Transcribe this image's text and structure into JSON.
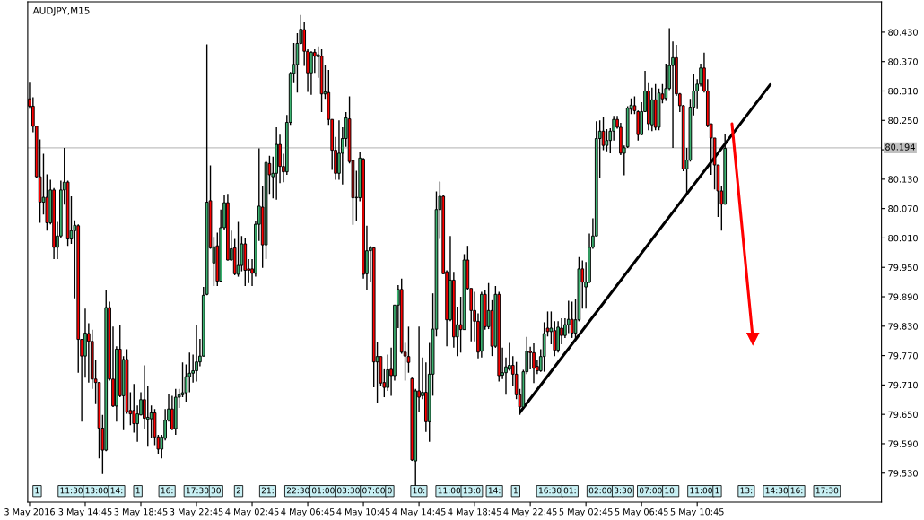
{
  "chart_data": {
    "type": "candlestick",
    "title": "AUDJPY,M15",
    "colors": [
      "#ff0000",
      "#ff0000",
      "#ff0000",
      "#ff0000",
      "#3cb371",
      "#ff0000",
      "#3cb371",
      "#ff0000",
      "#3cb371",
      "#3cb371",
      "#3cb371",
      "#ff0000",
      "#3cb371",
      "#3cb371",
      "#ff0000",
      "#ff0000",
      "#3cb371",
      "#ff0000",
      "#ff0000",
      "#ff0000",
      "#ff0000",
      "#ff0000",
      "#3cb371",
      "#ff0000",
      "#ff0000",
      "#3cb371",
      "#ff0000",
      "#3cb371",
      "#ff0000",
      "#ff0000",
      "#ff0000",
      "#3cb371",
      "#3cb371",
      "#ff0000",
      "#3cb371",
      "#3cb371",
      "#ff0000",
      "#ff0000",
      "#3cb371",
      "#3cb371",
      "#3cb371",
      "#ff0000",
      "#3cb371",
      "#3cb371",
      "#3cb371",
      "#3cb371",
      "#3cb371",
      "#3cb371",
      "#3cb371",
      "#3cb371",
      "#3cb371",
      "#3cb371",
      "#ff0000",
      "#3cb371",
      "#ff0000",
      "#3cb371",
      "#3cb371",
      "#ff0000",
      "#3cb371",
      "#ff0000",
      "#3cb371",
      "#3cb371",
      "#ff0000",
      "#ff0000",
      "#ff0000",
      "#3cb371",
      "#3cb371",
      "#ff0000",
      "#3cb371",
      "#ff0000",
      "#3cb371",
      "#3cb371",
      "#ff0000",
      "#ff0000",
      "#3cb371",
      "#3cb371",
      "#3cb371",
      "#3cb371",
      "#3cb371",
      "#ff0000",
      "#ff0000",
      "#3cb371",
      "#ff0000",
      "#3cb371",
      "#ff0000",
      "#3cb371",
      "#ff0000",
      "#ff0000",
      "#ff0000",
      "#3cb371",
      "#3cb371",
      "#3cb371",
      "#ff0000",
      "#ff0000",
      "#3cb371",
      "#3cb371",
      "#ff0000",
      "#3cb371",
      "#3cb371",
      "#ff0000",
      "#3cb371",
      "#ff0000",
      "#ff0000",
      "#3cb371",
      "#ff0000",
      "#3cb371",
      "#3cb371",
      "#ff0000",
      "#ff0000",
      "#ff0000",
      "#ff0000",
      "#3cb371",
      "#ff0000",
      "#3cb371",
      "#ff0000",
      "#3cb371",
      "#3cb371",
      "#3cb371",
      "#3cb371",
      "#ff0000",
      "#ff0000",
      "#3cb371",
      "#ff0000",
      "#3cb371",
      "#ff0000",
      "#3cb371",
      "#ff0000",
      "#ff0000",
      "#ff0000",
      "#ff0000",
      "#3cb371",
      "#ff0000",
      "#3cb371",
      "#ff0000",
      "#3cb371",
      "#ff0000",
      "#3cb371",
      "#3cb371",
      "#3cb371",
      "#ff0000",
      "#ff0000",
      "#ff0000",
      "#3cb371",
      "#3cb371",
      "#ff0000",
      "#ff0000",
      "#ff0000",
      "#3cb371",
      "#3cb371",
      "#ff0000",
      "#3cb371",
      "#ff0000",
      "#3cb371",
      "#ff0000",
      "#3cb371",
      "#3cb371",
      "#ff0000",
      "#3cb371",
      "#3cb371",
      "#ff0000",
      "#3cb371",
      "#3cb371",
      "#3cb371",
      "#3cb371",
      "#3cb371",
      "#ff0000",
      "#3cb371",
      "#3cb371",
      "#3cb371",
      "#ff0000",
      "#ff0000",
      "#3cb371",
      "#3cb371",
      "#3cb371",
      "#ff0000",
      "#ff0000",
      "#3cb371",
      "#3cb371",
      "#ff0000",
      "#3cb371",
      "#ff0000",
      "#3cb371",
      "#ff0000",
      "#3cb371",
      "#3cb371",
      "#3cb371",
      "#ff0000",
      "#ff0000",
      "#ff0000",
      "#3cb371",
      "#3cb371",
      "#3cb371",
      "#3cb371",
      "#3cb371",
      "#ff0000",
      "#ff0000",
      "#ff0000",
      "#ff0000",
      "#ff0000",
      "#ff0000",
      "#3cb371"
    ],
    "x": [
      "2016-05-03T10:45",
      "2016-05-03T11:00",
      "2016-05-03T11:15",
      "2016-05-03T11:30",
      "2016-05-03T11:45",
      "2016-05-03T12:00",
      "2016-05-03T12:15",
      "2016-05-03T12:30",
      "2016-05-03T12:45",
      "2016-05-03T13:00",
      "2016-05-03T13:15",
      "2016-05-03T13:30",
      "2016-05-03T13:45",
      "2016-05-03T14:00",
      "2016-05-03T14:15",
      "2016-05-03T14:30",
      "2016-05-03T14:45",
      "2016-05-03T15:00",
      "2016-05-03T15:15",
      "2016-05-03T15:30",
      "2016-05-03T15:45",
      "2016-05-03T16:00",
      "2016-05-03T16:15",
      "2016-05-03T16:30",
      "2016-05-03T16:45",
      "2016-05-03T17:00",
      "2016-05-03T17:15",
      "2016-05-03T17:30",
      "2016-05-03T17:45",
      "2016-05-03T18:00",
      "2016-05-03T18:15",
      "2016-05-03T18:30",
      "2016-05-03T18:45",
      "2016-05-03T19:00",
      "2016-05-03T19:15",
      "2016-05-03T19:30",
      "2016-05-03T19:45",
      "2016-05-03T20:00",
      "2016-05-03T20:15",
      "2016-05-03T20:30",
      "2016-05-03T20:45",
      "2016-05-03T21:00",
      "2016-05-03T21:15",
      "2016-05-03T21:30",
      "2016-05-03T21:45",
      "2016-05-03T22:00",
      "2016-05-03T22:15",
      "2016-05-03T22:30",
      "2016-05-03T22:45",
      "2016-05-03T23:00",
      "2016-05-03T23:15",
      "2016-05-03T23:30",
      "2016-05-03T23:45",
      "2016-05-04T00:00",
      "2016-05-04T00:15",
      "2016-05-04T00:30",
      "2016-05-04T00:45",
      "2016-05-04T01:00",
      "2016-05-04T01:15",
      "2016-05-04T01:30",
      "2016-05-04T01:45",
      "2016-05-04T02:00",
      "2016-05-04T02:15",
      "2016-05-04T02:30",
      "2016-05-04T02:45",
      "2016-05-04T03:00",
      "2016-05-04T03:15",
      "2016-05-04T03:30",
      "2016-05-04T03:45",
      "2016-05-04T04:00",
      "2016-05-04T04:15",
      "2016-05-04T04:30",
      "2016-05-04T04:45",
      "2016-05-04T05:00",
      "2016-05-04T05:15",
      "2016-05-04T05:30",
      "2016-05-04T05:45",
      "2016-05-04T06:00",
      "2016-05-04T06:15",
      "2016-05-04T06:30",
      "2016-05-04T06:45",
      "2016-05-04T07:00",
      "2016-05-04T07:15",
      "2016-05-04T07:30",
      "2016-05-04T07:45",
      "2016-05-04T08:00",
      "2016-05-04T08:15",
      "2016-05-04T08:30",
      "2016-05-04T08:45",
      "2016-05-04T09:00",
      "2016-05-04T09:15",
      "2016-05-04T09:30",
      "2016-05-04T09:45",
      "2016-05-04T10:00",
      "2016-05-04T10:15",
      "2016-05-04T10:30",
      "2016-05-04T10:45",
      "2016-05-04T11:00",
      "2016-05-04T11:15",
      "2016-05-04T11:30",
      "2016-05-04T11:45",
      "2016-05-04T12:00",
      "2016-05-04T12:15",
      "2016-05-04T12:30",
      "2016-05-04T12:45",
      "2016-05-04T13:00",
      "2016-05-04T13:15",
      "2016-05-04T13:30",
      "2016-05-04T13:45",
      "2016-05-04T14:00",
      "2016-05-04T14:15",
      "2016-05-04T14:30",
      "2016-05-04T14:45",
      "2016-05-04T15:00",
      "2016-05-04T15:15",
      "2016-05-04T15:30",
      "2016-05-04T15:45",
      "2016-05-04T16:00",
      "2016-05-04T16:15",
      "2016-05-04T16:30",
      "2016-05-04T16:45",
      "2016-05-04T17:00",
      "2016-05-04T17:15",
      "2016-05-04T17:30",
      "2016-05-04T17:45",
      "2016-05-04T18:00",
      "2016-05-04T18:15",
      "2016-05-04T18:30",
      "2016-05-04T18:45",
      "2016-05-04T19:00",
      "2016-05-04T19:15",
      "2016-05-04T19:30",
      "2016-05-04T19:45",
      "2016-05-04T20:00",
      "2016-05-04T20:15",
      "2016-05-04T20:30",
      "2016-05-04T20:45",
      "2016-05-04T21:00",
      "2016-05-04T21:15",
      "2016-05-04T21:30",
      "2016-05-04T21:45",
      "2016-05-04T22:00",
      "2016-05-04T22:15",
      "2016-05-04T22:30",
      "2016-05-04T22:45",
      "2016-05-04T23:00",
      "2016-05-04T23:15",
      "2016-05-04T23:30",
      "2016-05-04T23:45",
      "2016-05-05T00:00",
      "2016-05-05T00:15",
      "2016-05-05T00:30",
      "2016-05-05T00:45",
      "2016-05-05T01:00",
      "2016-05-05T01:15",
      "2016-05-05T01:30",
      "2016-05-05T01:45",
      "2016-05-05T02:00",
      "2016-05-05T02:15",
      "2016-05-05T02:30",
      "2016-05-05T02:45",
      "2016-05-05T03:00",
      "2016-05-05T03:15",
      "2016-05-05T03:30",
      "2016-05-05T03:45",
      "2016-05-05T04:00",
      "2016-05-05T04:15",
      "2016-05-05T04:30",
      "2016-05-05T04:45",
      "2016-05-05T05:00",
      "2016-05-05T05:15",
      "2016-05-05T05:30",
      "2016-05-05T05:45",
      "2016-05-05T06:00",
      "2016-05-05T06:15",
      "2016-05-05T06:30",
      "2016-05-05T06:45",
      "2016-05-05T07:00",
      "2016-05-05T07:15",
      "2016-05-05T07:30",
      "2016-05-05T07:45",
      "2016-05-05T08:00",
      "2016-05-05T08:15",
      "2016-05-05T08:30",
      "2016-05-05T08:45",
      "2016-05-05T09:00",
      "2016-05-05T09:15",
      "2016-05-05T09:30",
      "2016-05-05T09:45",
      "2016-05-05T10:00",
      "2016-05-05T10:15",
      "2016-05-05T10:30",
      "2016-05-05T10:45",
      "2016-05-05T11:00",
      "2016-05-05T11:15",
      "2016-05-05T11:30",
      "2016-05-05T11:45",
      "2016-05-05T12:00",
      "2016-05-05T12:15",
      "2016-05-05T12:30",
      "2016-05-05T12:45"
    ],
    "ohlc": [
      [
        80.294,
        80.327,
        80.274,
        80.279
      ],
      [
        80.279,
        80.297,
        80.226,
        80.238
      ],
      [
        80.238,
        80.238,
        80.132,
        80.135
      ],
      [
        80.135,
        80.211,
        80.041,
        80.083
      ],
      [
        80.083,
        80.182,
        80.058,
        80.093
      ],
      [
        80.093,
        80.14,
        80.025,
        80.041
      ],
      [
        80.041,
        80.129,
        80.038,
        80.108
      ],
      [
        80.108,
        80.112,
        79.967,
        79.991
      ],
      [
        79.991,
        80.043,
        79.967,
        80.014
      ],
      [
        80.014,
        80.127,
        80.011,
        80.108
      ],
      [
        80.108,
        80.194,
        80.078,
        80.124
      ],
      [
        80.124,
        80.127,
        79.994,
        80.008
      ],
      [
        80.008,
        80.095,
        79.998,
        80.025
      ],
      [
        80.025,
        80.046,
        79.887,
        80.036
      ],
      [
        80.035,
        80.038,
        79.735,
        79.803
      ],
      [
        79.803,
        79.803,
        79.635,
        79.769
      ],
      [
        79.769,
        79.866,
        79.725,
        79.816
      ],
      [
        79.815,
        79.836,
        79.715,
        79.799
      ],
      [
        79.799,
        79.823,
        79.702,
        79.722
      ],
      [
        79.722,
        79.762,
        79.671,
        79.715
      ],
      [
        79.715,
        79.715,
        79.56,
        79.622
      ],
      [
        79.622,
        79.649,
        79.528,
        79.577
      ],
      [
        79.577,
        79.903,
        79.575,
        79.868
      ],
      [
        79.868,
        79.88,
        79.719,
        79.722
      ],
      [
        79.722,
        79.829,
        79.665,
        79.667
      ],
      [
        79.667,
        79.789,
        79.635,
        79.783
      ],
      [
        79.783,
        79.833,
        79.685,
        79.688
      ],
      [
        79.688,
        79.769,
        79.618,
        79.762
      ],
      [
        79.762,
        79.783,
        79.651,
        79.655
      ],
      [
        79.658,
        79.695,
        79.628,
        79.651
      ],
      [
        79.658,
        79.712,
        79.613,
        79.631
      ],
      [
        79.631,
        79.668,
        79.594,
        79.651
      ],
      [
        79.649,
        79.695,
        79.648,
        79.68
      ],
      [
        79.68,
        79.75,
        79.621,
        79.642
      ],
      [
        79.64,
        79.708,
        79.584,
        79.644
      ],
      [
        79.641,
        79.668,
        79.601,
        79.653
      ],
      [
        79.653,
        79.661,
        79.587,
        79.604
      ],
      [
        79.604,
        79.608,
        79.57,
        79.579
      ],
      [
        79.579,
        79.608,
        79.56,
        79.604
      ],
      [
        79.601,
        79.661,
        79.597,
        79.638
      ],
      [
        79.638,
        79.691,
        79.635,
        79.661
      ],
      [
        79.661,
        79.688,
        79.618,
        79.62
      ],
      [
        79.621,
        79.702,
        79.608,
        79.685
      ],
      [
        79.685,
        79.702,
        79.663,
        79.69
      ],
      [
        79.69,
        79.756,
        79.685,
        79.694
      ],
      [
        79.694,
        79.752,
        79.676,
        79.727
      ],
      [
        79.727,
        79.776,
        79.695,
        79.734
      ],
      [
        79.734,
        79.772,
        79.715,
        79.739
      ],
      [
        79.739,
        79.833,
        79.717,
        79.757
      ],
      [
        79.757,
        79.804,
        79.748,
        79.769
      ],
      [
        79.769,
        79.91,
        79.768,
        79.893
      ],
      [
        79.895,
        80.405,
        79.893,
        80.083
      ],
      [
        80.086,
        80.158,
        79.988,
        79.99
      ],
      [
        79.959,
        80.012,
        79.912,
        79.992
      ],
      [
        79.994,
        80.021,
        79.912,
        79.922
      ],
      [
        79.922,
        80.068,
        79.92,
        80.031
      ],
      [
        80.031,
        80.098,
        80.026,
        80.082
      ],
      [
        80.082,
        80.1,
        79.964,
        79.965
      ],
      [
        79.965,
        80.025,
        79.964,
        79.988
      ],
      [
        79.99,
        80.008,
        79.934,
        79.937
      ],
      [
        79.936,
        80.043,
        79.931,
        79.954
      ],
      [
        79.954,
        80.014,
        79.942,
        79.998
      ],
      [
        79.998,
        80.011,
        79.912,
        79.944
      ],
      [
        79.947,
        79.967,
        79.918,
        79.944
      ],
      [
        79.947,
        79.967,
        79.912,
        79.938
      ],
      [
        79.938,
        80.045,
        79.931,
        80.038
      ],
      [
        80.038,
        80.193,
        80.004,
        80.075
      ],
      [
        80.073,
        80.115,
        79.949,
        79.996
      ],
      [
        79.996,
        80.167,
        79.967,
        80.164
      ],
      [
        80.162,
        80.178,
        80.1,
        80.139
      ],
      [
        80.135,
        80.176,
        80.091,
        80.142
      ],
      [
        80.142,
        80.236,
        80.088,
        80.201
      ],
      [
        80.201,
        80.221,
        80.122,
        80.156
      ],
      [
        80.156,
        80.182,
        80.124,
        80.145
      ],
      [
        80.145,
        80.261,
        80.139,
        80.246
      ],
      [
        80.246,
        80.349,
        80.241,
        80.346
      ],
      [
        80.346,
        80.408,
        80.326,
        80.364
      ],
      [
        80.364,
        80.428,
        80.307,
        80.407
      ],
      [
        80.407,
        80.465,
        80.405,
        80.436
      ],
      [
        80.435,
        80.45,
        80.361,
        80.391
      ],
      [
        80.391,
        80.395,
        80.308,
        80.347
      ],
      [
        80.347,
        80.391,
        80.302,
        80.389
      ],
      [
        80.389,
        80.395,
        80.347,
        80.381
      ],
      [
        80.38,
        80.401,
        80.337,
        80.384
      ],
      [
        80.381,
        80.395,
        80.267,
        80.304
      ],
      [
        80.304,
        80.364,
        80.294,
        80.308
      ],
      [
        80.307,
        80.353,
        80.241,
        80.252
      ],
      [
        80.252,
        80.252,
        80.149,
        80.189
      ],
      [
        80.189,
        80.216,
        80.129,
        80.142
      ],
      [
        80.142,
        80.25,
        80.129,
        80.183
      ],
      [
        80.183,
        80.236,
        80.119,
        80.213
      ],
      [
        80.213,
        80.267,
        80.196,
        80.255
      ],
      [
        80.253,
        80.299,
        80.162,
        80.166
      ],
      [
        80.168,
        80.168,
        80.037,
        80.092
      ],
      [
        80.092,
        80.147,
        80.045,
        80.093
      ],
      [
        80.092,
        80.186,
        80.085,
        80.173
      ],
      [
        80.171,
        80.173,
        79.927,
        79.936
      ],
      [
        79.937,
        80.035,
        79.904,
        79.984
      ],
      [
        79.984,
        79.994,
        79.92,
        79.99
      ],
      [
        79.99,
        79.991,
        79.705,
        79.757
      ],
      [
        79.757,
        79.797,
        79.673,
        79.768
      ],
      [
        79.768,
        79.768,
        79.708,
        79.714
      ],
      [
        79.715,
        79.742,
        79.685,
        79.705
      ],
      [
        79.705,
        79.772,
        79.698,
        79.741
      ],
      [
        79.742,
        79.786,
        79.688,
        79.729
      ],
      [
        79.729,
        79.873,
        79.719,
        79.873
      ],
      [
        79.873,
        79.914,
        79.826,
        79.905
      ],
      [
        79.905,
        79.927,
        79.774,
        79.777
      ],
      [
        79.777,
        79.796,
        79.719,
        79.769
      ],
      [
        79.768,
        79.829,
        79.735,
        79.756
      ],
      [
        79.723,
        79.725,
        79.555,
        79.557
      ],
      [
        79.555,
        79.702,
        79.503,
        79.698
      ],
      [
        79.698,
        79.829,
        79.655,
        79.685
      ],
      [
        79.688,
        79.766,
        79.681,
        79.695
      ],
      [
        79.695,
        79.756,
        79.614,
        79.635
      ],
      [
        79.635,
        79.796,
        79.594,
        79.732
      ],
      [
        79.732,
        79.897,
        79.688,
        79.824
      ],
      [
        79.824,
        80.105,
        79.809,
        80.068
      ],
      [
        80.068,
        80.125,
        80.008,
        80.095
      ],
      [
        80.095,
        80.098,
        79.937,
        79.937
      ],
      [
        79.941,
        79.944,
        79.789,
        79.843
      ],
      [
        79.843,
        80.014,
        79.84,
        79.924
      ],
      [
        79.924,
        79.941,
        79.786,
        79.808
      ],
      [
        79.808,
        79.87,
        79.769,
        79.833
      ],
      [
        79.833,
        79.89,
        79.776,
        79.823
      ],
      [
        79.823,
        79.977,
        79.823,
        79.965
      ],
      [
        79.965,
        79.994,
        79.904,
        79.907
      ],
      [
        79.907,
        79.907,
        79.799,
        79.862
      ],
      [
        79.862,
        79.9,
        79.799,
        79.84
      ],
      [
        79.84,
        79.856,
        79.764,
        79.777
      ],
      [
        79.779,
        79.9,
        79.766,
        79.895
      ],
      [
        79.895,
        79.903,
        79.823,
        79.829
      ],
      [
        79.829,
        79.918,
        79.824,
        79.862
      ],
      [
        79.862,
        79.883,
        79.769,
        79.789
      ],
      [
        79.789,
        79.912,
        79.786,
        79.895
      ],
      [
        79.895,
        79.9,
        79.717,
        79.729
      ],
      [
        79.73,
        79.786,
        79.722,
        79.735
      ],
      [
        79.735,
        79.766,
        79.69,
        79.747
      ],
      [
        79.742,
        79.796,
        79.739,
        79.75
      ],
      [
        79.75,
        79.769,
        79.708,
        79.732
      ],
      [
        79.732,
        79.757,
        79.681,
        79.69
      ],
      [
        79.69,
        79.702,
        79.649,
        79.665
      ],
      [
        79.665,
        79.741,
        79.661,
        79.737
      ],
      [
        79.737,
        79.808,
        79.732,
        79.779
      ],
      [
        79.779,
        79.788,
        79.742,
        79.776
      ],
      [
        79.776,
        79.795,
        79.714,
        79.744
      ],
      [
        79.748,
        79.762,
        79.732,
        79.739
      ],
      [
        79.739,
        79.783,
        79.737,
        79.768
      ],
      [
        79.768,
        79.838,
        79.737,
        79.815
      ],
      [
        79.826,
        79.86,
        79.809,
        79.819
      ],
      [
        79.819,
        79.86,
        79.793,
        79.826
      ],
      [
        79.821,
        79.84,
        79.769,
        79.781
      ],
      [
        79.781,
        79.84,
        79.776,
        79.828
      ],
      [
        79.826,
        79.846,
        79.793,
        79.811
      ],
      [
        79.811,
        79.846,
        79.806,
        79.833
      ],
      [
        79.833,
        79.882,
        79.816,
        79.844
      ],
      [
        79.844,
        79.88,
        79.806,
        79.816
      ],
      [
        79.816,
        79.885,
        79.803,
        79.843
      ],
      [
        79.843,
        79.971,
        79.84,
        79.947
      ],
      [
        79.947,
        79.964,
        79.866,
        79.92
      ],
      [
        79.91,
        79.961,
        79.866,
        79.92
      ],
      [
        79.92,
        80.019,
        79.918,
        79.991
      ],
      [
        79.991,
        80.05,
        79.988,
        80.014
      ],
      [
        80.014,
        80.248,
        80.014,
        80.213
      ],
      [
        80.213,
        80.25,
        80.132,
        80.228
      ],
      [
        80.228,
        80.257,
        80.189,
        80.199
      ],
      [
        80.199,
        80.232,
        80.187,
        80.209
      ],
      [
        80.209,
        80.234,
        80.183,
        80.228
      ],
      [
        80.228,
        80.259,
        80.209,
        80.252
      ],
      [
        80.252,
        80.259,
        80.233,
        80.236
      ],
      [
        80.236,
        80.245,
        80.179,
        80.183
      ],
      [
        80.183,
        80.199,
        80.138,
        80.194
      ],
      [
        80.196,
        80.279,
        80.194,
        80.275
      ],
      [
        80.273,
        80.295,
        80.263,
        80.281
      ],
      [
        80.28,
        80.299,
        80.263,
        80.27
      ],
      [
        80.268,
        80.27,
        80.209,
        80.221
      ],
      [
        80.221,
        80.287,
        80.22,
        80.268
      ],
      [
        80.268,
        80.351,
        80.267,
        80.31
      ],
      [
        80.31,
        80.326,
        80.23,
        80.243
      ],
      [
        80.241,
        80.317,
        80.228,
        80.292
      ],
      [
        80.292,
        80.324,
        80.23,
        80.236
      ],
      [
        80.236,
        80.315,
        80.23,
        80.306
      ],
      [
        80.304,
        80.324,
        80.285,
        80.294
      ],
      [
        80.295,
        80.366,
        80.29,
        80.315
      ],
      [
        80.315,
        80.438,
        80.312,
        80.362
      ],
      [
        80.362,
        80.411,
        80.194,
        80.378
      ],
      [
        80.378,
        80.404,
        80.3,
        80.304
      ],
      [
        80.304,
        80.306,
        80.267,
        80.28
      ],
      [
        80.28,
        80.281,
        80.146,
        80.151
      ],
      [
        80.151,
        80.194,
        80.099,
        80.169
      ],
      [
        80.169,
        80.294,
        80.166,
        80.277
      ],
      [
        80.277,
        80.344,
        80.26,
        80.31
      ],
      [
        80.31,
        80.334,
        80.273,
        80.324
      ],
      [
        80.324,
        80.366,
        80.319,
        80.357
      ],
      [
        80.357,
        80.388,
        80.307,
        80.31
      ],
      [
        80.31,
        80.334,
        80.236,
        80.24
      ],
      [
        80.243,
        80.243,
        80.139,
        80.214
      ],
      [
        80.214,
        80.214,
        80.109,
        80.159
      ],
      [
        80.159,
        80.159,
        80.053,
        80.106
      ],
      [
        80.106,
        80.115,
        80.025,
        80.079
      ],
      [
        80.079,
        80.223,
        80.078,
        80.193
      ]
    ],
    "series": [
      {
        "type": "line",
        "color": "#000000",
        "x": [
          "2016-05-04T22:00",
          "2016-05-05T16:00"
        ],
        "values": [
          79.654,
          80.323
        ]
      },
      {
        "type": "line",
        "color": "#ff0000",
        "marker": "triangle",
        "x": [
          "2016-05-05T13:15",
          "2016-05-05T14:45"
        ],
        "values": [
          80.243,
          79.804
        ]
      }
    ],
    "xlim": [
      "2016-05-03T10:37",
      "2016-05-06T00:00"
    ],
    "xticks": [
      {
        "value": "2016-05-03T10:45",
        "label": "3 May 2016"
      },
      {
        "value": "2016-05-03T14:45",
        "label": "3 May 14:45"
      },
      {
        "value": "2016-05-03T18:45",
        "label": "3 May 18:45"
      },
      {
        "value": "2016-05-03T22:45",
        "label": "3 May 22:45"
      },
      {
        "value": "2016-05-04T02:45",
        "label": "4 May 02:45"
      },
      {
        "value": "2016-05-04T06:45",
        "label": "4 May 06:45"
      },
      {
        "value": "2016-05-04T10:45",
        "label": "4 May 10:45"
      },
      {
        "value": "2016-05-04T14:45",
        "label": "4 May 14:45"
      },
      {
        "value": "2016-05-04T18:45",
        "label": "4 May 18:45"
      },
      {
        "value": "2016-05-04T22:45",
        "label": "4 May 22:45"
      },
      {
        "value": "2016-05-05T02:45",
        "label": "5 May 02:45"
      },
      {
        "value": "2016-05-05T06:45",
        "label": "5 May 06:45"
      },
      {
        "value": "2016-05-05T10:45",
        "label": "5 May 10:45"
      }
    ],
    "ylim": [
      79.471,
      80.492
    ],
    "yticks": [
      {
        "value": 79.53,
        "label": "79.530"
      },
      {
        "value": 79.59,
        "label": "79.590"
      },
      {
        "value": 79.65,
        "label": "79.650"
      },
      {
        "value": 79.71,
        "label": "79.710"
      },
      {
        "value": 79.77,
        "label": "79.770"
      },
      {
        "value": 79.83,
        "label": "79.830"
      },
      {
        "value": 79.89,
        "label": "79.890"
      },
      {
        "value": 79.95,
        "label": "79.950"
      },
      {
        "value": 80.01,
        "label": "80.010"
      },
      {
        "value": 80.07,
        "label": "80.070"
      },
      {
        "value": 80.13,
        "label": "80.130"
      },
      {
        "value": 80.19,
        "label": null
      },
      {
        "value": 80.25,
        "label": "80.250"
      },
      {
        "value": 80.31,
        "label": "80.310"
      },
      {
        "value": 80.37,
        "label": "80.370"
      },
      {
        "value": 80.43,
        "label": "80.430"
      }
    ],
    "ref_lines": [
      {
        "axis": "y",
        "value": 80.194,
        "label": "80.194",
        "color": "#c0c0c0"
      }
    ],
    "annotations": [
      "1",
      "11:30",
      "13:00",
      "14:",
      "1",
      "16:",
      "17:30",
      "30",
      "2",
      "21:",
      "22:30",
      "01:00",
      "03:30",
      "07:00",
      "0",
      "10:",
      "11:00",
      "13:0",
      "14:",
      "1",
      "16:30",
      "01:",
      "02:00",
      "3:30",
      "07:00",
      "10:",
      "11:00",
      "1",
      "13:",
      "14:30",
      "16:",
      "17:30"
    ]
  }
}
